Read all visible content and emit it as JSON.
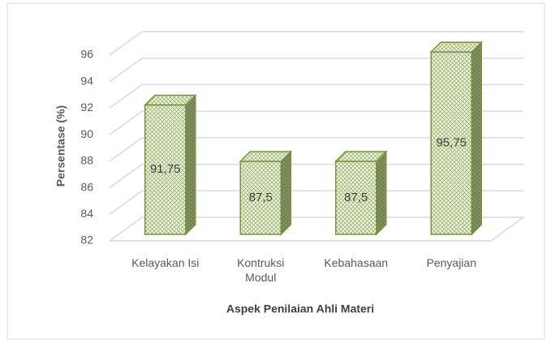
{
  "chart_data": {
    "type": "bar3d",
    "x_label": "Aspek Penilaian Ahli Materi",
    "y_label": "Persentase (%)",
    "categories": [
      "Kelayakan Isi",
      "Kontruksi Modul",
      "Kebahasaan",
      "Penyajian"
    ],
    "values": [
      91.75,
      87.5,
      87.5,
      95.75
    ],
    "value_labels": [
      "91,75",
      "87,5",
      "87,5",
      "95,75"
    ],
    "color": "#77933c",
    "ylim": [
      82,
      96
    ],
    "yticks": [
      82,
      84,
      86,
      88,
      90,
      92,
      94,
      96
    ],
    "grid": true
  }
}
